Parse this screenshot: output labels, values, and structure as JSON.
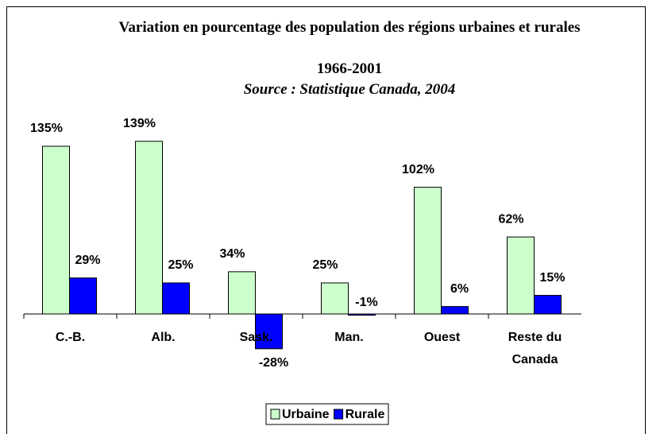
{
  "chart_data": {
    "type": "bar",
    "title": "Variation en pourcentage des population des régions urbaines et rurales",
    "subtitle": "1966-2001",
    "source": "Source : Statistique Canada, 2004",
    "categories": [
      "C.-B.",
      "Alb.",
      "Sask.",
      "Man.",
      "Ouest",
      "Reste du Canada"
    ],
    "series": [
      {
        "name": "Urbaine",
        "color": "#ccffcc",
        "values": [
          135,
          139,
          34,
          25,
          102,
          62
        ],
        "value_labels": [
          "135%",
          "139%",
          "34%",
          "25%",
          "102%",
          "62%"
        ]
      },
      {
        "name": "Rurale",
        "color": "#0000ff",
        "values": [
          29,
          25,
          -28,
          -1,
          6,
          15
        ],
        "value_labels": [
          "29%",
          "25%",
          "-28%",
          "-1%",
          "6%",
          "15%"
        ]
      }
    ],
    "ylim": [
      -30,
      150
    ],
    "legend": "bottom"
  }
}
